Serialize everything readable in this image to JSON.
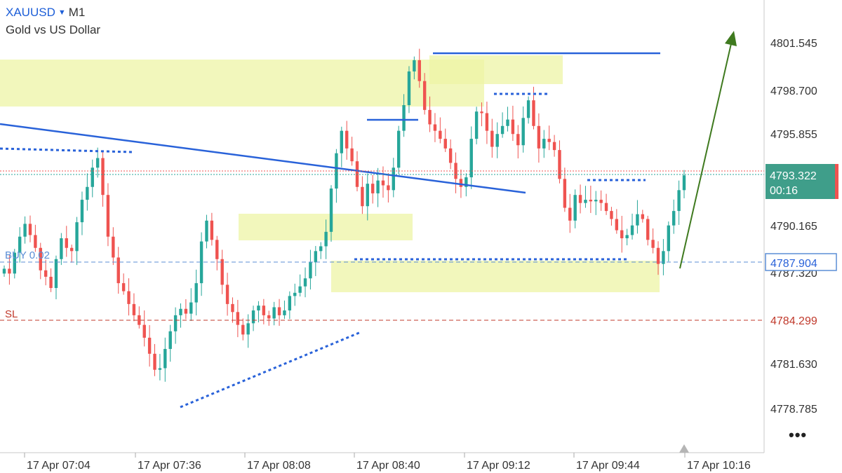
{
  "header": {
    "symbol": "XAUUSD",
    "timeframe": "M1",
    "description": "Gold vs US Dollar"
  },
  "colors": {
    "bull": "#26a69a",
    "bear": "#ef5350",
    "trendline": "#2962d9",
    "zone": "#f0f5b2",
    "arrow": "#3f7a1f",
    "sl": "#c0392b",
    "buy": "#5b8ed6"
  },
  "chart_data": {
    "type": "candlestick",
    "symbol": "XAUUSD",
    "timeframe": "M1",
    "ylim": [
      4776.5,
      4804.5
    ],
    "y_ticks": [
      "4801.545",
      "4798.700",
      "4795.855",
      "4793.322",
      "4790.165",
      "4787.320",
      "4784.299",
      "4781.630",
      "4778.785"
    ],
    "x_ticks": [
      "17 Apr 07:04",
      "17 Apr 07:36",
      "17 Apr 08:08",
      "17 Apr 08:40",
      "17 Apr 09:12",
      "17 Apr 09:44",
      "17 Apr 10:16"
    ],
    "close_series": [
      4787.5,
      4787.2,
      4788.5,
      4789.5,
      4790.3,
      4789.6,
      4788.8,
      4787.4,
      4787.0,
      4786.3,
      4788.1,
      4789.4,
      4788.8,
      4788.6,
      4790.4,
      4791.8,
      4792.6,
      4793.8,
      4794.4,
      4792.1,
      4789.5,
      4788.2,
      4786.6,
      4786.1,
      4785.3,
      4784.6,
      4784.0,
      4783.2,
      4782.2,
      4781.2,
      4781.3,
      4782.5,
      4783.6,
      4784.6,
      4785.0,
      4784.7,
      4785.4,
      4786.6,
      4789.2,
      4790.5,
      4789.3,
      4788.1,
      4786.5,
      4785.3,
      4784.8,
      4784.0,
      4783.4,
      4784.1,
      4784.9,
      4785.2,
      4784.6,
      4784.4,
      4785.1,
      4784.6,
      4784.9,
      4785.8,
      4786.0,
      4786.4,
      4786.9,
      4787.9,
      4788.6,
      4788.9,
      4789.8,
      4792.5,
      4794.7,
      4796.1,
      4795.0,
      4794.2,
      4792.6,
      4791.4,
      4792.8,
      4792.2,
      4793.0,
      4792.7,
      4792.4,
      4793.8,
      4796.1,
      4797.7,
      4799.8,
      4800.5,
      4799.2,
      4797.4,
      4796.5,
      4796.1,
      4795.6,
      4795.0,
      4794.1,
      4793.1,
      4792.6,
      4793.2,
      4795.6,
      4797.3,
      4797.2,
      4796.1,
      4795.1,
      4795.9,
      4796.4,
      4796.8,
      4795.9,
      4795.2,
      4796.9,
      4798.0,
      4796.4,
      4795.0,
      4795.6,
      4795.4,
      4794.9,
      4793.1,
      4791.3,
      4790.5,
      4792.1,
      4791.6,
      4791.8,
      4791.7,
      4791.8,
      4791.6,
      4791.1,
      4790.6,
      4789.9,
      4789.4,
      4789.6,
      4790.2,
      4790.9,
      4790.6,
      4789.3,
      4788.8,
      4787.8,
      4788.6,
      4790.2,
      4791.1,
      4792.4,
      4793.322
    ],
    "current_price": "4793.322",
    "countdown": "00:16",
    "levels": [
      {
        "label": "BUY 0.02",
        "price": "4787.904",
        "type": "entry"
      },
      {
        "label": "SL",
        "price": "4784.299",
        "type": "stop_loss"
      }
    ]
  }
}
